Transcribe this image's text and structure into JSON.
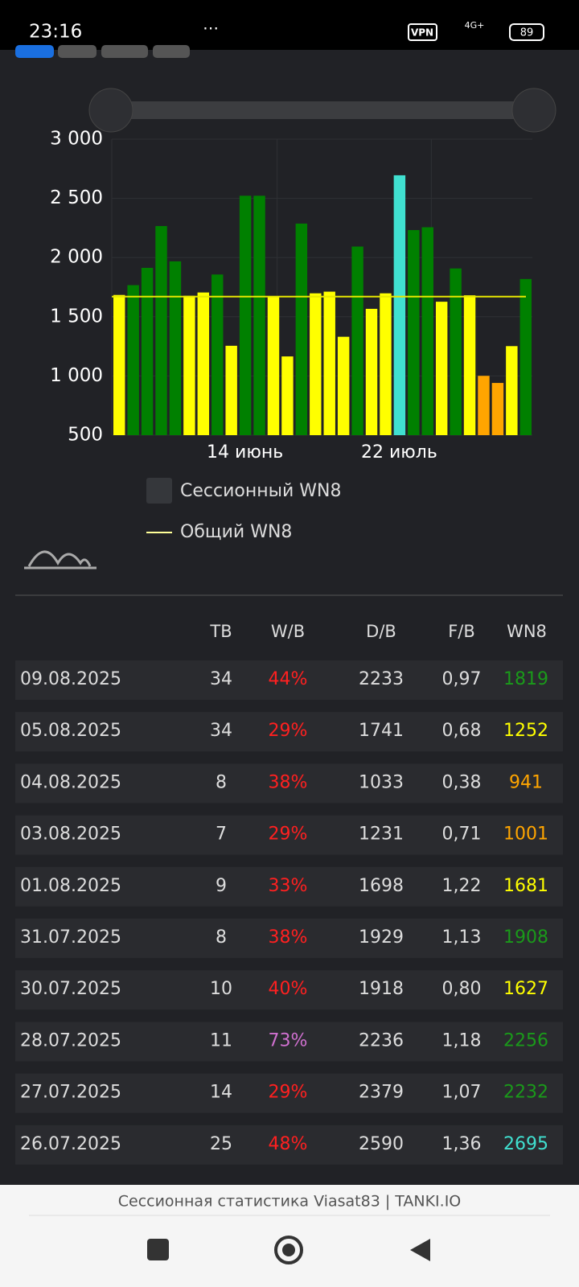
{
  "status_bar": {
    "time": "23:16",
    "vpn": "VPN",
    "network": "4G+",
    "battery": "89"
  },
  "chart": {
    "type": "bar",
    "values": [
      1684,
      1767,
      1913,
      2266,
      1968,
      1677,
      1705,
      1857,
      1255,
      2522,
      2522,
      1670,
      1165,
      2287,
      1698,
      1712,
      1331,
      2093,
      1567,
      1698,
      2695,
      2232,
      2256,
      1627,
      1908,
      1681,
      1001,
      941,
      1252,
      1819
    ],
    "colors": [
      "#ffff00",
      "#008000",
      "#008000",
      "#008000",
      "#008000",
      "#ffff00",
      "#ffff00",
      "#008000",
      "#ffff00",
      "#008000",
      "#008000",
      "#ffff00",
      "#ffff00",
      "#008000",
      "#ffff00",
      "#ffff00",
      "#ffff00",
      "#008000",
      "#ffff00",
      "#ffff00",
      "#40e0d0",
      "#008000",
      "#008000",
      "#ffff00",
      "#008000",
      "#ffff00",
      "#ffa500",
      "#ffa500",
      "#ffff00",
      "#008000"
    ],
    "categories": [
      null,
      null,
      null,
      null,
      null,
      null,
      null,
      null,
      null,
      "14 июнь",
      null,
      null,
      null,
      null,
      null,
      null,
      null,
      null,
      null,
      null,
      "22 июль",
      null,
      null,
      null,
      null,
      null,
      null,
      null,
      null,
      null
    ],
    "average": 1670,
    "average_color": "#e8e800",
    "ylim": [
      500,
      3000
    ],
    "yticks": [
      500,
      {
        "value": 1000,
        "label": "1 000"
      },
      {
        "value": 1500,
        "label": "1 500"
      },
      {
        "value": 2000,
        "label": "2 000"
      },
      {
        "value": 2500,
        "label": "2 500"
      },
      {
        "value": 3000,
        "label": "3 000"
      }
    ],
    "legend": [
      "Сессионный WN8",
      "Общий WN8"
    ]
  },
  "table": {
    "header": [
      "ТВ",
      "W/B",
      "D/B",
      "F/B",
      "WN8"
    ],
    "rows": [
      [
        "09.08.2025",
        "34",
        "44%",
        "2233",
        "0,97",
        "1819"
      ],
      [
        "05.08.2025",
        "34",
        "29%",
        "1741",
        "0,68",
        "1252"
      ],
      [
        "04.08.2025",
        "8",
        "38%",
        "1033",
        "0,38",
        "941"
      ],
      [
        "03.08.2025",
        "7",
        "29%",
        "1231",
        "0,71",
        "1001"
      ],
      [
        "01.08.2025",
        "9",
        "33%",
        "1698",
        "1,22",
        "1681"
      ],
      [
        "31.07.2025",
        "8",
        "38%",
        "1929",
        "1,13",
        "1908"
      ],
      [
        "30.07.2025",
        "10",
        "40%",
        "1918",
        "0,80",
        "1627"
      ],
      [
        "28.07.2025",
        "11",
        "73%",
        "2236",
        "1,18",
        "2256"
      ],
      [
        "27.07.2025",
        "14",
        "29%",
        "2379",
        "1,07",
        "2232"
      ],
      [
        "26.07.2025",
        "25",
        "48%",
        "2590",
        "1,36",
        "2695"
      ]
    ],
    "wb_colors": [
      "#ff2020",
      "#ff2020",
      "#ff2020",
      "#ff2020",
      "#ff2020",
      "#ff2020",
      "#ff2020",
      "#d070d0",
      "#ff2020",
      "#ff2020"
    ],
    "wn8_colors": [
      "#1a9a1a",
      "#ffff00",
      "#ffa500",
      "#ffa500",
      "#ffff00",
      "#1a9a1a",
      "#ffff00",
      "#1a9a1a",
      "#1a9a1a",
      "#40e0d0"
    ]
  },
  "footer": {
    "title": "Сессионная статистика Viasat83 | TANKI.IO"
  }
}
